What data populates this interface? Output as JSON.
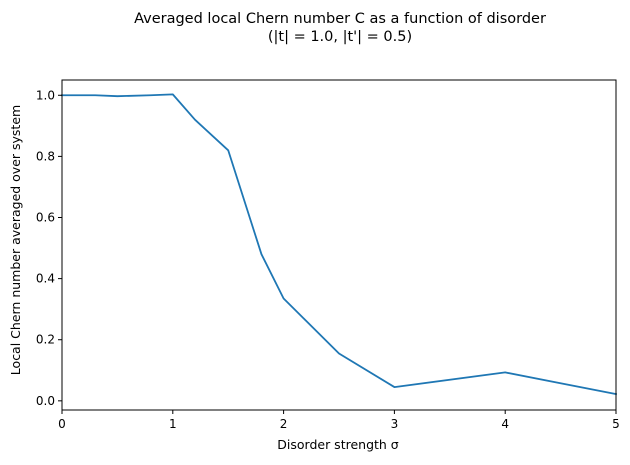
{
  "chart_data": {
    "type": "line",
    "title": "Averaged local Chern number C as a function of disorder",
    "subtitle": "(|t| = 1.0, |t'| = 0.5)",
    "xlabel": "Disorder strength σ",
    "ylabel": "Local Chern number averaged over system",
    "xlim": [
      0,
      5
    ],
    "ylim": [
      -0.03,
      1.05
    ],
    "xticks": [
      0,
      1,
      2,
      3,
      4,
      5
    ],
    "xtick_labels": [
      "0",
      "1",
      "2",
      "3",
      "4",
      "5"
    ],
    "yticks": [
      0.0,
      0.2,
      0.4,
      0.6,
      0.8,
      1.0
    ],
    "ytick_labels": [
      "0.0",
      "0.2",
      "0.4",
      "0.6",
      "0.8",
      "1.0"
    ],
    "grid": false,
    "legend": "none",
    "series": [
      {
        "color": "#1f77b4",
        "x": [
          0,
          0.3,
          0.5,
          0.8,
          1.0,
          1.2,
          1.5,
          1.8,
          2.0,
          2.5,
          3.0,
          4.0,
          5.0
        ],
        "y": [
          1.0,
          1.0,
          0.997,
          1.0,
          1.003,
          0.92,
          0.82,
          0.48,
          0.335,
          0.155,
          0.045,
          0.093,
          0.022
        ]
      }
    ]
  }
}
